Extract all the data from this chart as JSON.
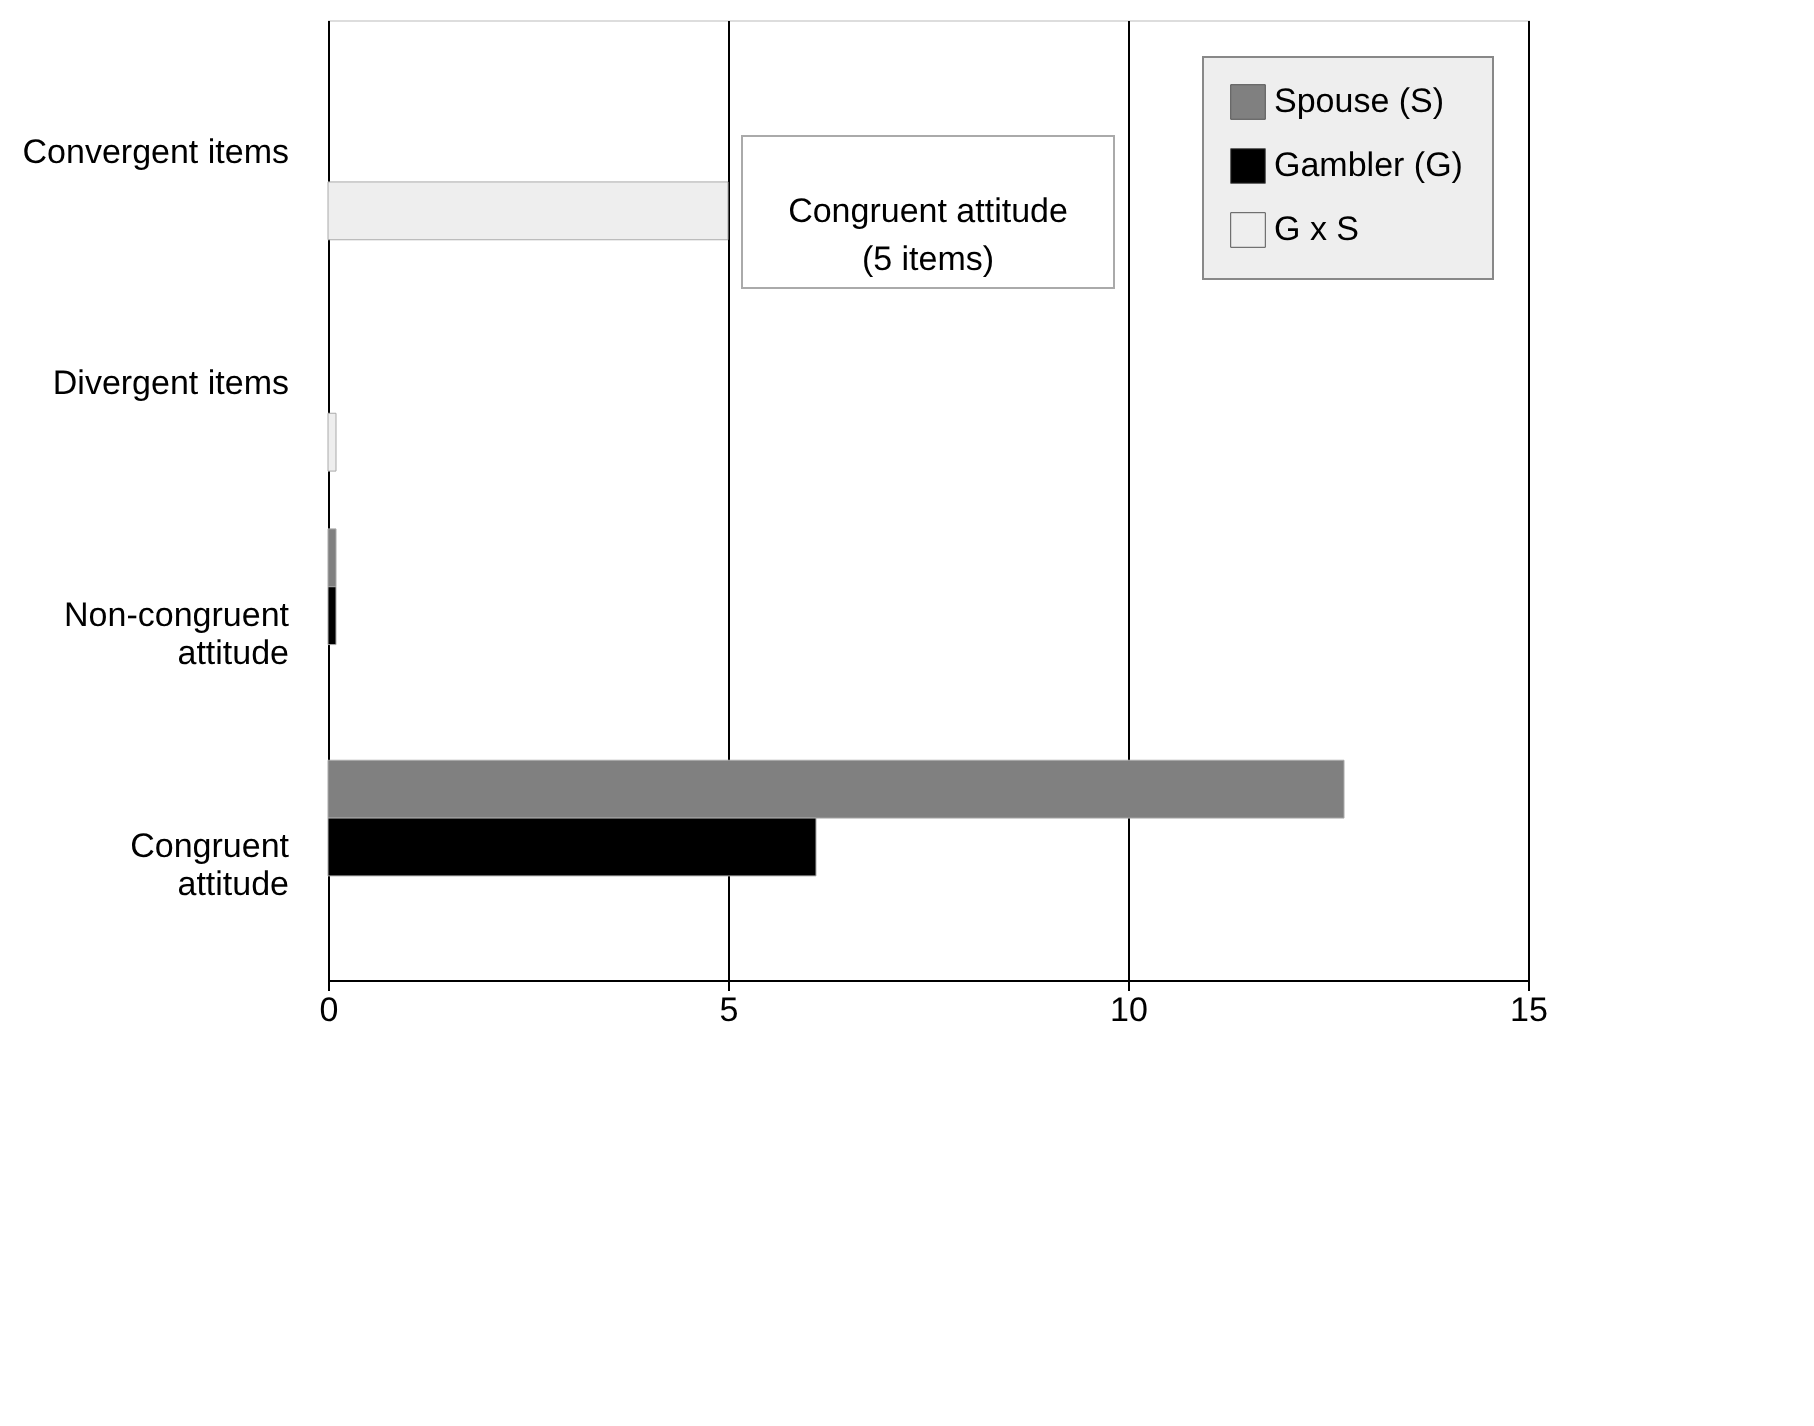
{
  "chart_data": {
    "type": "bar",
    "orientation": "horizontal",
    "categories": [
      "Convergent items",
      "Divergent items",
      "Non-congruent\nattitude",
      "Congruent\nattitude"
    ],
    "series": [
      {
        "name": "Spouse (S)",
        "color": "#808080",
        "values": [
          null,
          null,
          0.1,
          12.7
        ]
      },
      {
        "name": "Gambler (G)",
        "color": "#000000",
        "values": [
          null,
          null,
          0.1,
          6.1
        ]
      },
      {
        "name": "G x S",
        "color": "#eeeeee",
        "values": [
          5,
          0.1,
          null,
          null
        ]
      }
    ],
    "xlim": [
      0,
      15
    ],
    "xticks": [
      0,
      5,
      10,
      15
    ],
    "grid": "x",
    "legend": "top right",
    "annotations": [
      "Congruent attitude\n(5 items)"
    ]
  }
}
